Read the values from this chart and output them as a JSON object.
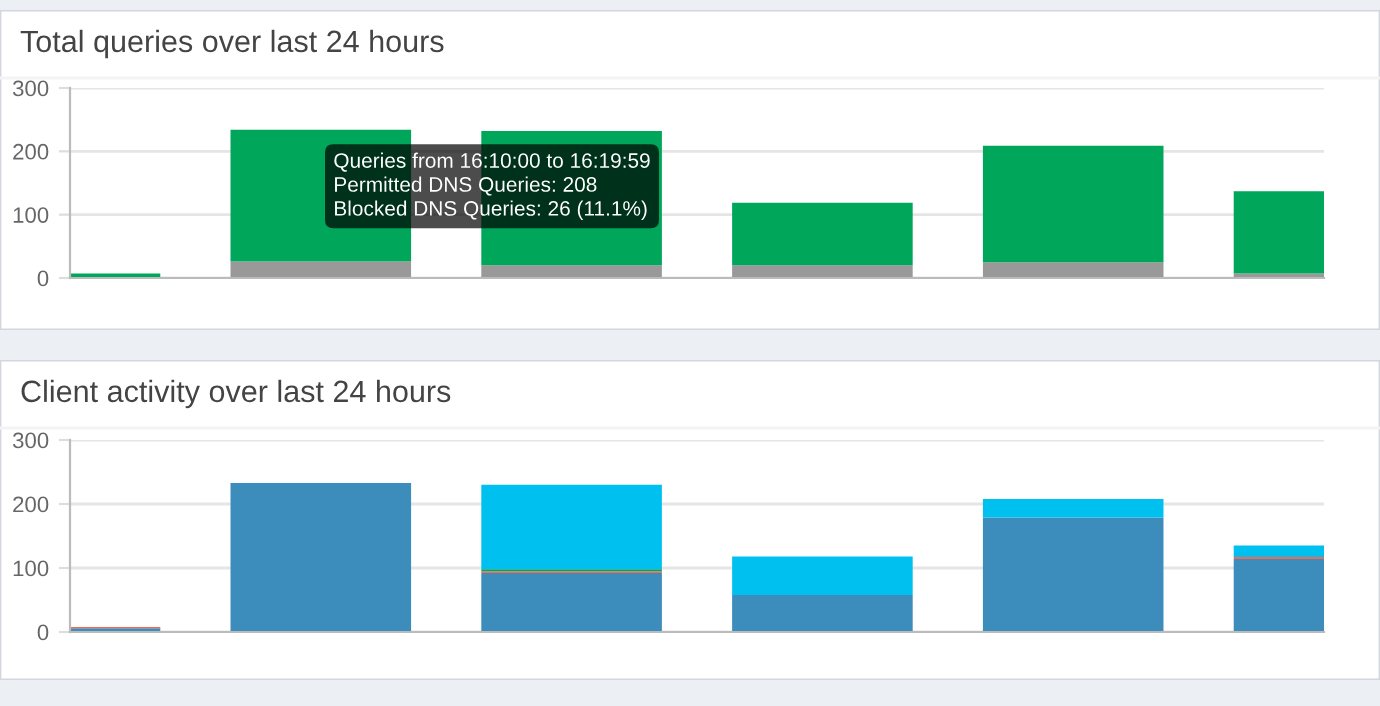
{
  "chart_data": [
    {
      "type": "bar",
      "title": "Total queries over last 24 hours",
      "categories": [
        null,
        null,
        null,
        null,
        null,
        null
      ],
      "stacked": true,
      "series": [
        {
          "color": "#999999",
          "values": [
            0,
            26,
            20,
            20,
            25,
            7
          ]
        },
        {
          "color": "#00a65a",
          "values": [
            7,
            208,
            212,
            99,
            184,
            130
          ]
        }
      ],
      "ylim": [
        0,
        300
      ],
      "yticks": [
        0,
        100,
        200,
        300
      ],
      "grid": "y",
      "tick_labels": "y",
      "annotations": [
        "Queries from 16:10:00 to 16:19:59\nPermitted DNS Queries: 208\nBlocked DNS Queries: 26 (11.1%)"
      ]
    },
    {
      "type": "bar",
      "title": "Client activity over last 24 hours",
      "categories": [
        null,
        null,
        null,
        null,
        null,
        null
      ],
      "stacked": true,
      "series": [
        {
          "color": "#3c8dbc",
          "values": [
            6,
            233,
            92,
            58,
            179,
            114
          ]
        },
        {
          "color": "#f56954",
          "values": [
            2,
            0,
            3,
            0,
            0,
            3
          ]
        },
        {
          "color": "#00a65a",
          "values": [
            0,
            0,
            3,
            0,
            0,
            0
          ]
        },
        {
          "color": "#00c0ef",
          "values": [
            0,
            0,
            132,
            60,
            29,
            18
          ]
        }
      ],
      "ylim": [
        0,
        300
      ],
      "yticks": [
        0,
        100,
        200,
        300
      ],
      "grid": "y",
      "tick_labels": "y"
    }
  ]
}
